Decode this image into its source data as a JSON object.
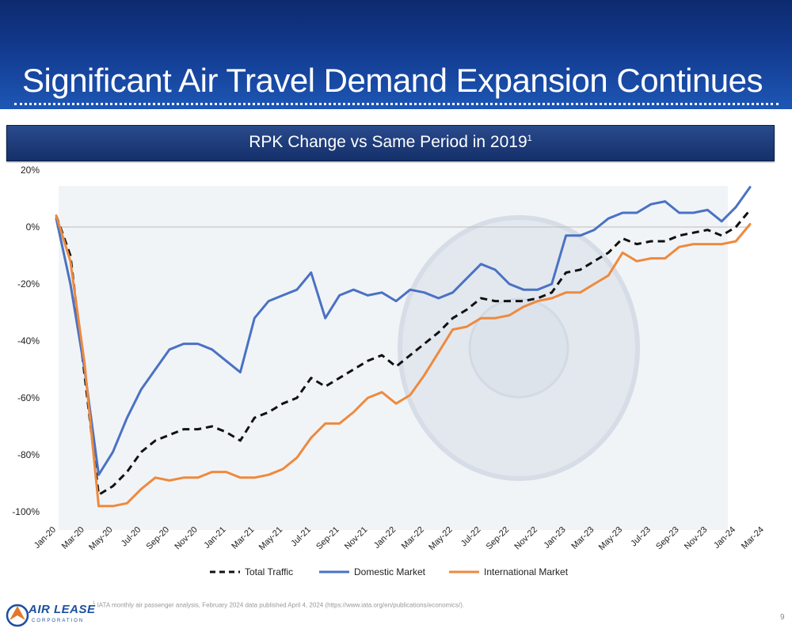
{
  "header": {
    "title": "Significant Air Travel Demand Expansion Continues"
  },
  "subtitle": {
    "text": "RPK Change vs Same Period in 2019",
    "footnote_mark": "1"
  },
  "footer": {
    "footnote_mark": "1",
    "footnote": "IATA monthly air passenger analysis, February 2024 data published April 4, 2024 (https://www.iata.org/en/publications/economics/).",
    "page_number": "9",
    "logo_text": "AIR LEASE",
    "logo_subtext": "CORPORATION"
  },
  "chart_data": {
    "type": "line",
    "title": "RPK Change vs Same Period in 2019",
    "xlabel": "",
    "ylabel": "",
    "ylim": [
      -100,
      20
    ],
    "yticks": [
      20,
      0,
      -20,
      -40,
      -60,
      -80,
      -100
    ],
    "ytick_labels": [
      "20%",
      "0%",
      "-20%",
      "-40%",
      "-60%",
      "-80%",
      "-100%"
    ],
    "x_tick_labels": [
      "Jan-20",
      "Mar-20",
      "May-20",
      "Jul-20",
      "Sep-20",
      "Nov-20",
      "Jan-21",
      "Mar-21",
      "May-21",
      "Jul-21",
      "Sep-21",
      "Nov-21",
      "Jan-22",
      "Mar-22",
      "May-22",
      "Jul-22",
      "Sep-22",
      "Nov-22",
      "Jan-23",
      "Mar-23",
      "May-23",
      "Jul-23",
      "Sep-23",
      "Nov-23",
      "Jan-24",
      "Mar-24"
    ],
    "legend_position": "bottom",
    "series": [
      {
        "name": "Total Traffic",
        "color": "#111111",
        "style": "dashed",
        "values": [
          4,
          -10,
          -52,
          -94,
          -91,
          -86,
          -79,
          -75,
          -73,
          -71,
          -71,
          -70,
          -72,
          -75,
          -67,
          -65,
          -62,
          -60,
          -53,
          -56,
          -53,
          -50,
          -47,
          -45,
          -49,
          -45,
          -41,
          -37,
          -32,
          -29,
          -25,
          -26,
          -26,
          -26,
          -25,
          -23,
          -16,
          -15,
          -12,
          -9,
          -4,
          -6,
          -5,
          -5,
          -3,
          -2,
          -1,
          -3,
          0,
          6
        ]
      },
      {
        "name": "Domestic Market",
        "color": "#4a72c4",
        "style": "solid",
        "values": [
          3,
          -20,
          -50,
          -87,
          -79,
          -67,
          -57,
          -50,
          -43,
          -41,
          -41,
          -43,
          -47,
          -51,
          -32,
          -26,
          -24,
          -22,
          -16,
          -32,
          -24,
          -22,
          -24,
          -23,
          -26,
          -22,
          -23,
          -25,
          -23,
          -18,
          -13,
          -15,
          -20,
          -22,
          -22,
          -20,
          -3,
          -3,
          -1,
          3,
          5,
          5,
          8,
          9,
          5,
          5,
          6,
          2,
          7,
          14
        ]
      },
      {
        "name": "International Market",
        "color": "#ed8a3e",
        "style": "solid",
        "values": [
          4,
          -12,
          -48,
          -98,
          -98,
          -97,
          -92,
          -88,
          -89,
          -88,
          -88,
          -86,
          -86,
          -88,
          -88,
          -87,
          -85,
          -81,
          -74,
          -69,
          -69,
          -65,
          -60,
          -58,
          -62,
          -59,
          -52,
          -44,
          -36,
          -35,
          -32,
          -32,
          -31,
          -28,
          -26,
          -25,
          -23,
          -23,
          -20,
          -17,
          -9,
          -12,
          -11,
          -11,
          -7,
          -6,
          -6,
          -6,
          -5,
          1
        ]
      }
    ]
  }
}
